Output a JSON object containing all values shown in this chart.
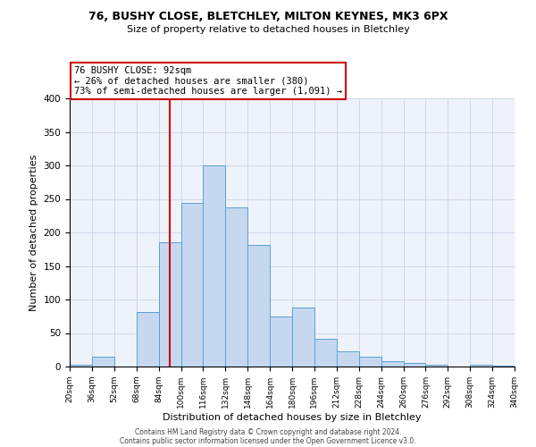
{
  "title1": "76, BUSHY CLOSE, BLETCHLEY, MILTON KEYNES, MK3 6PX",
  "title2": "Size of property relative to detached houses in Bletchley",
  "xlabel": "Distribution of detached houses by size in Bletchley",
  "ylabel": "Number of detached properties",
  "bins": [
    20,
    36,
    52,
    68,
    84,
    100,
    116,
    132,
    148,
    164,
    180,
    196,
    212,
    228,
    244,
    260,
    276,
    292,
    308,
    324,
    340
  ],
  "values": [
    3,
    15,
    0,
    82,
    186,
    244,
    300,
    238,
    182,
    75,
    88,
    42,
    23,
    15,
    8,
    5,
    3,
    0,
    3,
    2
  ],
  "bar_color": "#c5d8f0",
  "bar_edge_color": "#5a9fd4",
  "property_size": 92,
  "vline_color": "#cc0000",
  "annotation_line1": "76 BUSHY CLOSE: 92sqm",
  "annotation_line2": "← 26% of detached houses are smaller (380)",
  "annotation_line3": "73% of semi-detached houses are larger (1,091) →",
  "annotation_box_edgecolor": "#cc0000",
  "ylim": [
    0,
    400
  ],
  "yticks": [
    0,
    50,
    100,
    150,
    200,
    250,
    300,
    350,
    400
  ],
  "footer1": "Contains HM Land Registry data © Crown copyright and database right 2024.",
  "footer2": "Contains public sector information licensed under the Open Government Licence v3.0.",
  "bg_color": "#eef2fa",
  "grid_color": "#c8d4e8"
}
